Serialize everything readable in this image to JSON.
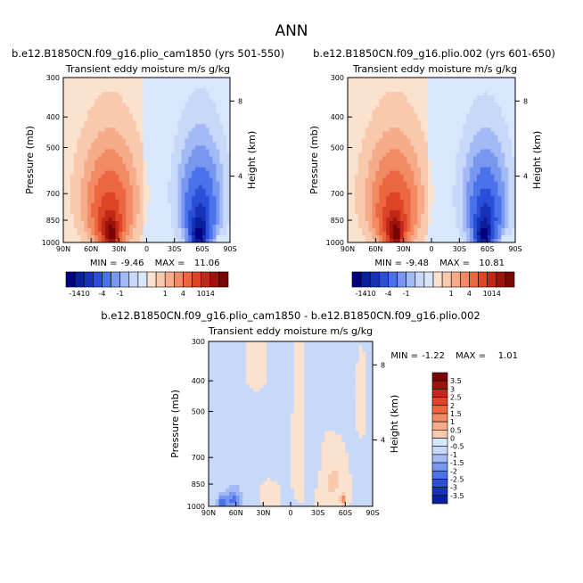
{
  "page_title": "ANN",
  "colors": {
    "neg": [
      "#000080",
      "#0a1f9e",
      "#1733b5",
      "#2a4fd8",
      "#4a72ea",
      "#7898f0",
      "#a3baf5",
      "#c8d8f9",
      "#d8e7fb"
    ],
    "pos": [
      "#fbe2cf",
      "#f9c9ad",
      "#f6ac89",
      "#f28a64",
      "#ec6740",
      "#dc4526",
      "#c22818",
      "#9e140d",
      "#7a0505"
    ],
    "zero_neg": "#d8e7fb",
    "zero_pos": "#fbe2cf"
  },
  "chart_data": [
    {
      "id": "panel1",
      "type": "heatmap",
      "title": "b.e12.B1850CN.f09_g16.plio_cam1850 (yrs 501-550)",
      "subtitle": "Transient eddy moisture m/s g/kg",
      "ylabel": "Pressure (mb)",
      "y2label": "Height (km)",
      "x_ticks": [
        "90N",
        "60N",
        "30N",
        "0",
        "30S",
        "60S",
        "90S"
      ],
      "x_values": [
        90,
        60,
        30,
        0,
        -30,
        -60,
        -90
      ],
      "y_ticks": [
        "300",
        "400",
        "500",
        "700",
        "850",
        "1000"
      ],
      "y_values": [
        300,
        400,
        500,
        700,
        850,
        1000
      ],
      "y2_ticks": [
        "8",
        "4"
      ],
      "y2_values": [
        356,
        616
      ],
      "min_label": "MIN =",
      "min_value": "-9.46",
      "max_label": "MAX =",
      "max_value": "11.06",
      "colorbar_labels": [
        "-14",
        "-10",
        "-4",
        "-1",
        "1",
        "4",
        "10",
        "14"
      ],
      "blobs": [
        {
          "lat": -58,
          "p": 680,
          "lw": 20,
          "pw": 210,
          "v": -1
        },
        {
          "lat": -58,
          "p": 810,
          "lw": 14,
          "pw": 170,
          "v": -2.5
        },
        {
          "lat": -58,
          "p": 900,
          "lw": 9,
          "pw": 120,
          "v": -4
        },
        {
          "lat": -55,
          "p": 960,
          "lw": 6,
          "pw": 70,
          "v": -5.5
        },
        {
          "lat": 40,
          "p": 700,
          "lw": 25,
          "pw": 220,
          "v": 1
        },
        {
          "lat": 40,
          "p": 820,
          "lw": 16,
          "pw": 160,
          "v": 2.5
        },
        {
          "lat": 40,
          "p": 910,
          "lw": 9,
          "pw": 100,
          "v": 4
        },
        {
          "lat": 38,
          "p": 950,
          "lw": 6,
          "pw": 70,
          "v": 6
        }
      ]
    },
    {
      "id": "panel2",
      "type": "heatmap",
      "title": "b.e12.B1850CN.f09_g16.plio.002 (yrs 601-650)",
      "subtitle": "Transient eddy moisture m/s g/kg",
      "ylabel": "Pressure (mb)",
      "y2label": "Height (km)",
      "x_ticks": [
        "90N",
        "60N",
        "30N",
        "0",
        "30S",
        "60S",
        "90S"
      ],
      "x_values": [
        90,
        60,
        30,
        0,
        -30,
        -60,
        -90
      ],
      "y_ticks": [
        "300",
        "400",
        "500",
        "700",
        "850",
        "1000"
      ],
      "y_values": [
        300,
        400,
        500,
        700,
        850,
        1000
      ],
      "y2_ticks": [
        "8",
        "4"
      ],
      "y2_values": [
        356,
        616
      ],
      "min_label": "MIN =",
      "min_value": "-9.48",
      "max_label": "MAX =",
      "max_value": "10.81",
      "colorbar_labels": [
        "-14",
        "-10",
        "-4",
        "-1",
        "1",
        "4",
        "10",
        "14"
      ],
      "blobs": [
        {
          "lat": -58,
          "p": 690,
          "lw": 20,
          "pw": 210,
          "v": -1
        },
        {
          "lat": -58,
          "p": 815,
          "lw": 14,
          "pw": 170,
          "v": -2.5
        },
        {
          "lat": -58,
          "p": 905,
          "lw": 9,
          "pw": 120,
          "v": -4
        },
        {
          "lat": -55,
          "p": 960,
          "lw": 6,
          "pw": 70,
          "v": -5.3
        },
        {
          "lat": 40,
          "p": 700,
          "lw": 25,
          "pw": 220,
          "v": 1
        },
        {
          "lat": 40,
          "p": 820,
          "lw": 16,
          "pw": 160,
          "v": 2.5
        },
        {
          "lat": 40,
          "p": 910,
          "lw": 9,
          "pw": 100,
          "v": 4
        },
        {
          "lat": 38,
          "p": 950,
          "lw": 6,
          "pw": 70,
          "v": 5.8
        }
      ]
    },
    {
      "id": "panel3",
      "type": "heatmap",
      "title": "b.e12.B1850CN.f09_g16.plio_cam1850 - b.e12.B1850CN.f09_g16.plio.002",
      "subtitle": "Transient eddy moisture m/s g/kg",
      "ylabel": "Pressure (mb)",
      "y2label": "Height (km)",
      "x_ticks": [
        "90N",
        "60N",
        "30N",
        "0",
        "30S",
        "60S",
        "90S"
      ],
      "x_values": [
        90,
        60,
        30,
        0,
        -30,
        -60,
        -90
      ],
      "y_ticks": [
        "300",
        "400",
        "500",
        "700",
        "850",
        "1000"
      ],
      "y_values": [
        300,
        400,
        500,
        700,
        850,
        1000
      ],
      "y2_ticks": [
        "8",
        "4"
      ],
      "y2_values": [
        356,
        616
      ],
      "min_label": "MIN =",
      "min_value": "-1.22",
      "max_label": "MAX =",
      "max_value": "1.01",
      "colorbar_labels": [
        "3.5",
        "3",
        "2.5",
        "2",
        "1.5",
        "1",
        "0.5",
        "0",
        "-0.5",
        "-1",
        "-1.5",
        "-2",
        "-2.5",
        "-3",
        "-3.5"
      ],
      "blobs": [
        {
          "lat": -8,
          "p": 620,
          "lw": 8,
          "pw": 380,
          "v": 0.3
        },
        {
          "lat": -52,
          "p": 780,
          "lw": 16,
          "pw": 230,
          "v": 0.3
        },
        {
          "lat": -40,
          "p": 900,
          "lw": 12,
          "pw": 150,
          "v": 0.3
        },
        {
          "lat": -78,
          "p": 420,
          "lw": 6,
          "pw": 150,
          "v": 0.3
        },
        {
          "lat": 40,
          "p": 360,
          "lw": 12,
          "pw": 90,
          "v": 0.3
        },
        {
          "lat": 20,
          "p": 930,
          "lw": 12,
          "pw": 120,
          "v": 0.3
        },
        {
          "lat": -58,
          "p": 950,
          "lw": 3,
          "pw": 40,
          "v": 0.9
        },
        {
          "lat": 63,
          "p": 960,
          "lw": 8,
          "pw": 80,
          "v": -0.9
        },
        {
          "lat": 75,
          "p": 975,
          "lw": 5,
          "pw": 50,
          "v": -1.1
        }
      ]
    }
  ]
}
